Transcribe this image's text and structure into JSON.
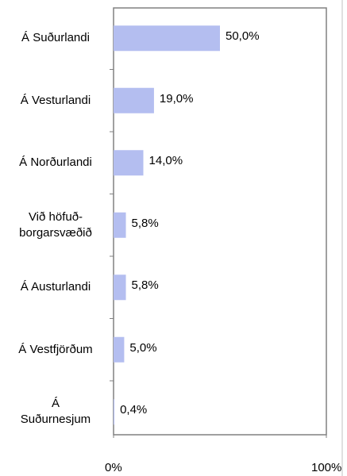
{
  "chart_data": {
    "type": "bar",
    "orientation": "horizontal",
    "categories": [
      "Á Suðurlandi",
      "Á Vesturlandi",
      "Á Norðurlandi",
      "Við höfuð-\nborgarsvæðið",
      "Á Austurlandi",
      "Á Vestfjörðum",
      "Á\nSuðurnesjum"
    ],
    "values": [
      50,
      19,
      14,
      5.8,
      5.8,
      5,
      0.4
    ],
    "value_labels": [
      "50,0%",
      "19,0%",
      "14,0%",
      "5,8%",
      "5,8%",
      "5,0%",
      "0,4%"
    ],
    "color": "#b4bef0",
    "xlim": [
      0,
      100
    ],
    "xticks": [
      {
        "value": 0,
        "label": "0%"
      },
      {
        "value": 100,
        "label": "100%"
      }
    ]
  }
}
